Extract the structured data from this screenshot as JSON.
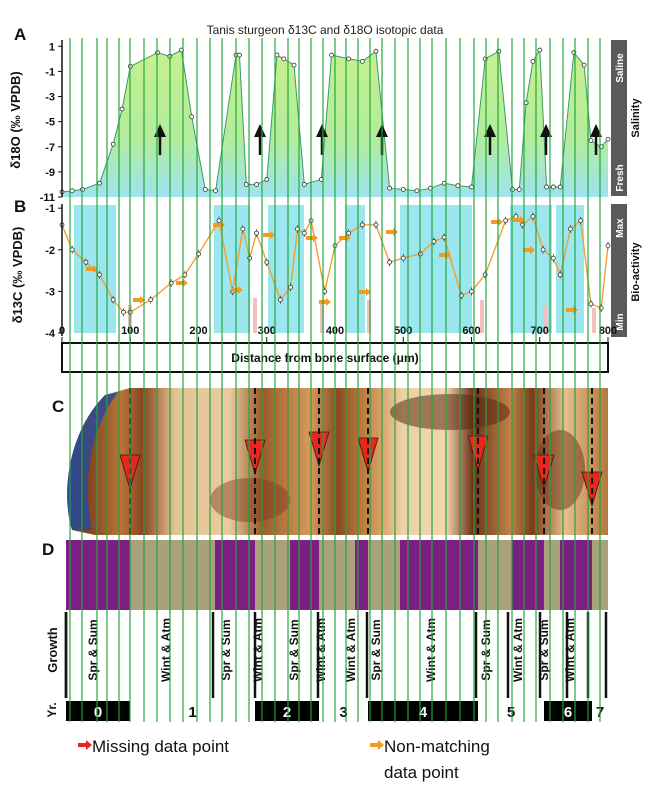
{
  "figure": {
    "title": "Tanis sturgeon δ13C and δ18O isotopic data",
    "panel_letters": [
      "A",
      "B",
      "C",
      "D"
    ],
    "panel_a": {
      "ylabel": "δ18O (‰ VPDB)",
      "side_label": "Salinity",
      "side_top": "Saline",
      "side_bottom": "Fresh",
      "yticks": [
        "1",
        "-1",
        "-3",
        "-5",
        "-7",
        "-9",
        "-11"
      ]
    },
    "panel_b": {
      "ylabel": "δ13C (‰ VPDB)",
      "side_label": "Bio-activity",
      "side_top": "Max",
      "side_bottom": "Min",
      "yticks": [
        "-1",
        "-2",
        "-3",
        "-4"
      ],
      "xlabel": "Distance from bone surface (μm)",
      "xticks": [
        "0",
        "100",
        "200",
        "300",
        "400",
        "500",
        "600",
        "700",
        "800"
      ]
    },
    "panel_d": {
      "growth_label": "Growth",
      "year_label": "Yr.",
      "season_labels": [
        "Spr & Sum",
        "Wint & Atm",
        "Spr & Sum",
        "Wint & Atm",
        "Spr & Sum",
        "Wint & Atm",
        "Wint & Atm",
        "Spr & Sum",
        "Wint & Atm",
        "Spr & Sum",
        "Wint & Atm",
        "Spr & Sum",
        "Wint & Atm"
      ],
      "years": [
        "0",
        "1",
        "2",
        "3",
        "4",
        "5",
        "6",
        "7"
      ]
    },
    "legend": {
      "missing": "Missing data point",
      "nonmatching": "Non-matching data point"
    },
    "colors": {
      "d18o_fill_top": "#c6f08e",
      "d18o_fill_bottom": "#9ee3ef",
      "d13c_line": "#f0a030",
      "cyan_band": "#9be6ef",
      "vertical_lines": "#22a63a",
      "purple": "#7b1f82",
      "tan": "#a9a07e",
      "year_bar": "#000000",
      "missing_arrow": "#e8261c",
      "nonmatching_arrow": "#f59a1c"
    }
  },
  "chart_data": [
    {
      "type": "area",
      "title": "Tanis sturgeon δ13C and δ18O isotopic data",
      "ylabel": "δ18O (‰ VPDB)",
      "ylim": [
        -11,
        1.5
      ],
      "xlim": [
        0,
        800
      ],
      "x": [
        0,
        15,
        30,
        55,
        75,
        88,
        100,
        140,
        158,
        175,
        190,
        210,
        225,
        255,
        260,
        270,
        285,
        300,
        315,
        325,
        340,
        355,
        380,
        395,
        420,
        440,
        460,
        480,
        500,
        520,
        540,
        560,
        580,
        600,
        620,
        640,
        660,
        670,
        680,
        690,
        700,
        710,
        720,
        730,
        750,
        765,
        775,
        790,
        800
      ],
      "y": [
        -10.6,
        -10.5,
        -10.4,
        -9.9,
        -6.8,
        -4.0,
        -0.6,
        0.5,
        0.2,
        0.7,
        -4.6,
        -10.4,
        -10.5,
        0.3,
        0.3,
        -10.0,
        -10.0,
        -9.6,
        0.3,
        0.0,
        -0.5,
        -10.0,
        -9.6,
        0.3,
        0.0,
        -0.2,
        0.6,
        -10.3,
        -10.4,
        -10.5,
        -10.3,
        -9.9,
        -10.1,
        -10.2,
        0.0,
        0.6,
        -10.4,
        -10.4,
        -3.5,
        -0.2,
        0.7,
        -10.2,
        -10.2,
        -10.2,
        0.5,
        -0.5,
        -6.5,
        -7.0,
        -6.4
      ],
      "annotations": [
        "upward arrows indicating increasing salinity"
      ]
    },
    {
      "type": "line",
      "ylabel": "δ13C (‰ VPDB)",
      "xlabel": "Distance from bone surface (μm)",
      "ylim": [
        -4,
        -0.9
      ],
      "xlim": [
        0,
        800
      ],
      "x": [
        0,
        15,
        35,
        55,
        75,
        90,
        100,
        130,
        160,
        180,
        200,
        230,
        250,
        265,
        275,
        285,
        300,
        320,
        335,
        345,
        355,
        365,
        385,
        400,
        420,
        440,
        460,
        480,
        500,
        525,
        545,
        560,
        585,
        600,
        620,
        650,
        665,
        675,
        690,
        705,
        720,
        730,
        745,
        760,
        775,
        790,
        800
      ],
      "y": [
        -1.4,
        -2.0,
        -2.3,
        -2.6,
        -3.2,
        -3.5,
        -3.5,
        -3.2,
        -2.8,
        -2.6,
        -2.1,
        -1.3,
        -3.0,
        -1.5,
        -2.2,
        -1.6,
        -2.3,
        -3.2,
        -2.9,
        -1.5,
        -1.6,
        -1.3,
        -3.0,
        -1.9,
        -1.6,
        -1.4,
        -1.4,
        -2.3,
        -2.2,
        -2.1,
        -1.8,
        -1.7,
        -3.1,
        -3.0,
        -2.6,
        -1.3,
        -1.2,
        -1.4,
        -1.2,
        -2.0,
        -2.2,
        -2.6,
        -1.5,
        -1.3,
        -3.3,
        -3.4,
        -1.9
      ]
    }
  ]
}
